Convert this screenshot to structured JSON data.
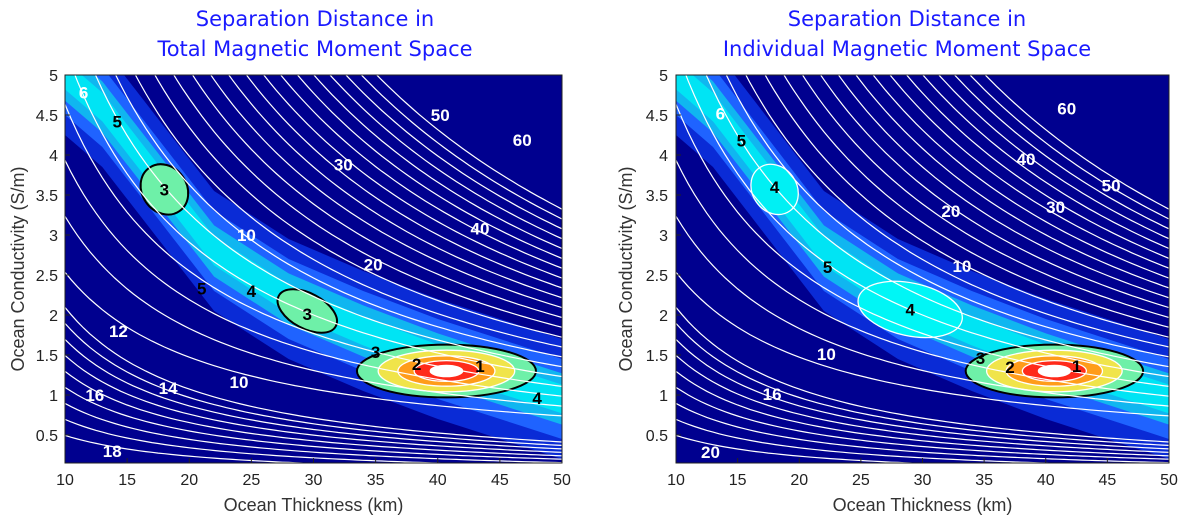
{
  "colors": {
    "title": "#1a1aff",
    "background": "#00008f",
    "contour_line": "#ffffff",
    "contour_line_low": "#000000"
  },
  "chart_data": [
    {
      "type": "heatmap",
      "title": "Separation Distance in\nTotal Magnetic Moment Space",
      "title_lines": [
        "Separation Distance in",
        "Total Magnetic Moment Space"
      ],
      "xlabel": "Ocean Thickness (km)",
      "ylabel": "Ocean Conductivity (S/m)",
      "xlim": [
        10,
        50
      ],
      "ylim": [
        0.15,
        5
      ],
      "xticks": [
        "10",
        "15",
        "20",
        "25",
        "30",
        "35",
        "40",
        "45",
        "50"
      ],
      "yticks": [
        "0.5",
        "1",
        "1.5",
        "2",
        "2.5",
        "3",
        "3.5",
        "4",
        "4.5",
        "5"
      ],
      "colormap": "jet",
      "grid": false,
      "minimum": {
        "x": 41,
        "y": 1.3
      },
      "contour_labels": [
        {
          "text": "6",
          "x": 11.5,
          "y": 4.78,
          "color": "white"
        },
        {
          "text": "5",
          "x": 14.2,
          "y": 4.42,
          "color": "black"
        },
        {
          "text": "3",
          "x": 18,
          "y": 3.57,
          "color": "black"
        },
        {
          "text": "10",
          "x": 24.6,
          "y": 3.0,
          "color": "white"
        },
        {
          "text": "5",
          "x": 21,
          "y": 2.33,
          "color": "black"
        },
        {
          "text": "4",
          "x": 25,
          "y": 2.3,
          "color": "black"
        },
        {
          "text": "3",
          "x": 29.5,
          "y": 2.01,
          "color": "black"
        },
        {
          "text": "12",
          "x": 14.3,
          "y": 1.8,
          "color": "white"
        },
        {
          "text": "3",
          "x": 35,
          "y": 1.54,
          "color": "black"
        },
        {
          "text": "2",
          "x": 38.3,
          "y": 1.39,
          "color": "black"
        },
        {
          "text": "1",
          "x": 43.4,
          "y": 1.36,
          "color": "black"
        },
        {
          "text": "4",
          "x": 48,
          "y": 0.96,
          "color": "black"
        },
        {
          "text": "10",
          "x": 24,
          "y": 1.16,
          "color": "white"
        },
        {
          "text": "14",
          "x": 18.3,
          "y": 1.09,
          "color": "white"
        },
        {
          "text": "16",
          "x": 12.4,
          "y": 1.0,
          "color": "white"
        },
        {
          "text": "18",
          "x": 13.8,
          "y": 0.3,
          "color": "white"
        },
        {
          "text": "20",
          "x": 34.8,
          "y": 2.63,
          "color": "white"
        },
        {
          "text": "30",
          "x": 32.4,
          "y": 3.88,
          "color": "white"
        },
        {
          "text": "40",
          "x": 43.4,
          "y": 3.08,
          "color": "white"
        },
        {
          "text": "50",
          "x": 40.2,
          "y": 4.5,
          "color": "white"
        },
        {
          "text": "60",
          "x": 46.8,
          "y": 4.19,
          "color": "white"
        }
      ]
    },
    {
      "type": "heatmap",
      "title": "Separation Distance in\nIndividual Magnetic Moment Space",
      "title_lines": [
        "Separation Distance in",
        "Individual Magnetic Moment Space"
      ],
      "xlabel": "Ocean Thickness (km)",
      "ylabel": "Ocean Conductivity (S/m)",
      "xlim": [
        10,
        50
      ],
      "ylim": [
        0.15,
        5
      ],
      "xticks": [
        "10",
        "15",
        "20",
        "25",
        "30",
        "35",
        "40",
        "45",
        "50"
      ],
      "yticks": [
        "0.5",
        "1",
        "1.5",
        "2",
        "2.5",
        "3",
        "3.5",
        "4",
        "4.5",
        "5"
      ],
      "colormap": "jet",
      "grid": false,
      "minimum": {
        "x": 41,
        "y": 1.3
      },
      "contour_labels": [
        {
          "text": "6",
          "x": 13.6,
          "y": 4.52,
          "color": "white"
        },
        {
          "text": "5",
          "x": 15.3,
          "y": 4.18,
          "color": "black"
        },
        {
          "text": "4",
          "x": 18,
          "y": 3.6,
          "color": "black"
        },
        {
          "text": "20",
          "x": 32.3,
          "y": 3.3,
          "color": "white"
        },
        {
          "text": "5",
          "x": 22.3,
          "y": 2.6,
          "color": "black"
        },
        {
          "text": "10",
          "x": 33.2,
          "y": 2.61,
          "color": "white"
        },
        {
          "text": "30",
          "x": 40.8,
          "y": 3.35,
          "color": "white"
        },
        {
          "text": "40",
          "x": 38.4,
          "y": 3.95,
          "color": "white"
        },
        {
          "text": "50",
          "x": 45.3,
          "y": 3.62,
          "color": "white"
        },
        {
          "text": "60",
          "x": 41.7,
          "y": 4.58,
          "color": "white"
        },
        {
          "text": "4",
          "x": 29,
          "y": 2.07,
          "color": "black"
        },
        {
          "text": "10",
          "x": 22.2,
          "y": 1.51,
          "color": "white"
        },
        {
          "text": "3",
          "x": 34.7,
          "y": 1.46,
          "color": "black"
        },
        {
          "text": "2",
          "x": 37.1,
          "y": 1.35,
          "color": "black"
        },
        {
          "text": "1",
          "x": 42.5,
          "y": 1.36,
          "color": "black"
        },
        {
          "text": "16",
          "x": 17.8,
          "y": 1.01,
          "color": "white"
        },
        {
          "text": "20",
          "x": 12.8,
          "y": 0.29,
          "color": "white"
        }
      ]
    }
  ]
}
